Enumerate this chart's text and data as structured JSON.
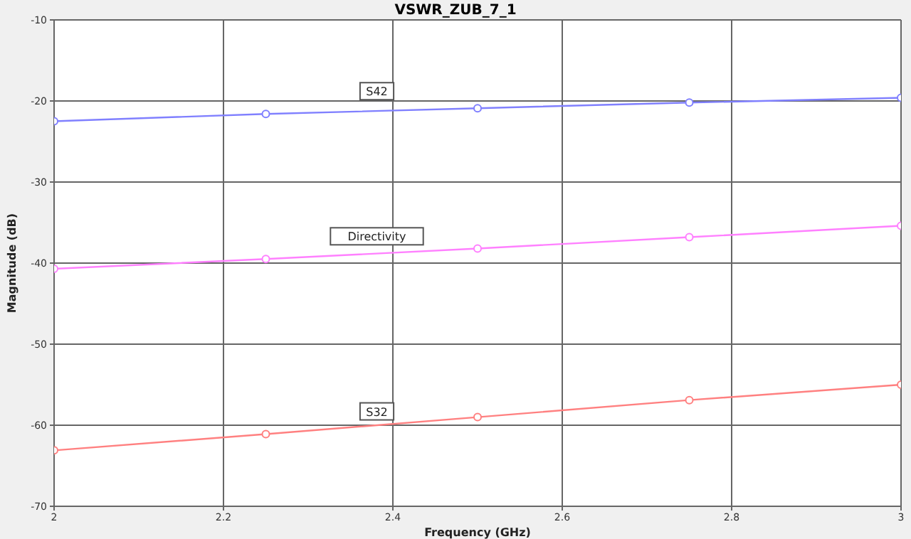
{
  "chart_data": {
    "type": "line",
    "title": "VSWR_ZUB_7_1",
    "xlabel": "Frequency (GHz)",
    "ylabel": "Magnitude (dB)",
    "x": [
      2,
      2.25,
      2.5,
      2.75,
      3
    ],
    "series": [
      {
        "name": "S42",
        "color": "#8080ff",
        "values": [
          -22.5,
          -21.6,
          -20.9,
          -20.2,
          -19.6
        ]
      },
      {
        "name": "Directivity",
        "color": "#ff80ff",
        "values": [
          -40.7,
          -39.5,
          -38.2,
          -36.8,
          -35.4
        ]
      },
      {
        "name": "S32",
        "color": "#ff8080",
        "values": [
          -63.1,
          -61.1,
          -59.0,
          -56.9,
          -55.0
        ]
      }
    ],
    "xlim": [
      2,
      3
    ],
    "xticks": [
      2,
      2.2,
      2.4,
      2.6,
      2.8,
      3
    ],
    "ylim": [
      -70,
      -10
    ],
    "yticks": [
      -10,
      -20,
      -30,
      -40,
      -50,
      -60,
      -70
    ],
    "grid": true,
    "marker": "circle",
    "line_style": "solid"
  }
}
